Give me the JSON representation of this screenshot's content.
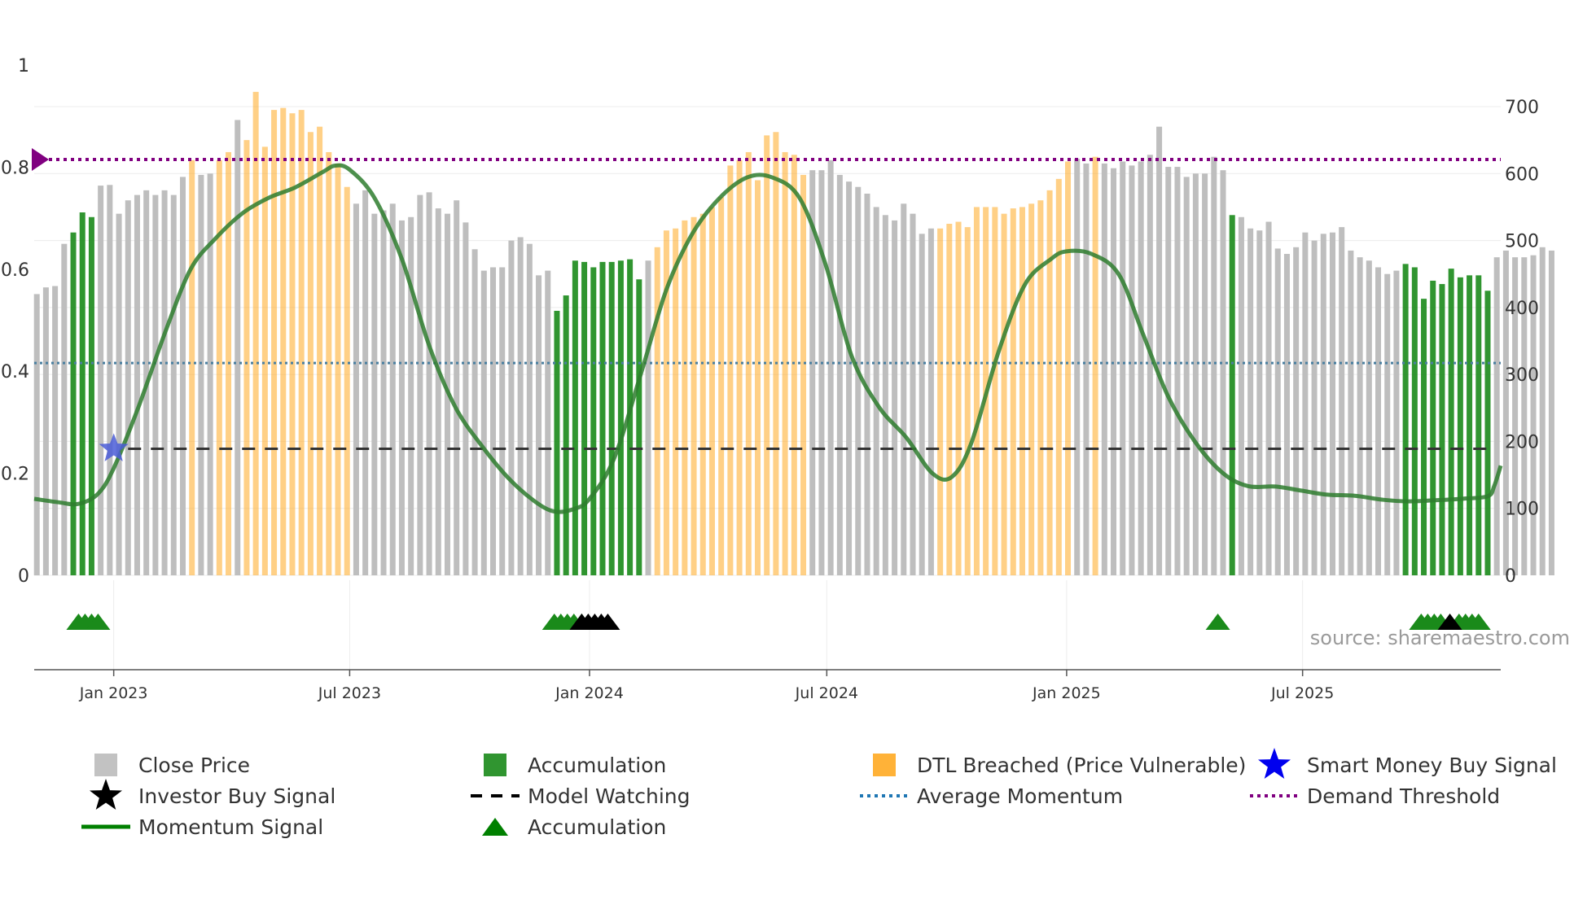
{
  "chart_data": {
    "type": "bar",
    "title": "",
    "source_text": "source: sharemaestro.com",
    "x_range": [
      "2022-11-01",
      "2025-11-30"
    ],
    "x_ticks": [
      {
        "date": "2023-01-01",
        "label": "Jan 2023"
      },
      {
        "date": "2023-07-01",
        "label": "Jul 2023"
      },
      {
        "date": "2024-01-01",
        "label": "Jan 2024"
      },
      {
        "date": "2024-07-01",
        "label": "Jul 2024"
      },
      {
        "date": "2025-01-01",
        "label": "Jan 2025"
      },
      {
        "date": "2025-07-01",
        "label": "Jul 2025"
      }
    ],
    "y_left": {
      "range": [
        0,
        1
      ],
      "ticks": [
        {
          "value": 0,
          "label": "0"
        },
        {
          "value": 0.2,
          "label": "0.2"
        },
        {
          "value": 0.4,
          "label": "0.4"
        },
        {
          "value": 0.6,
          "label": "0.6"
        },
        {
          "value": 0.8,
          "label": "0.8"
        },
        {
          "value": 1,
          "label": "1"
        }
      ]
    },
    "y_right": {
      "range": [
        0,
        760
      ],
      "ticks": [
        {
          "value": 0,
          "label": "0"
        },
        {
          "value": 100,
          "label": "100"
        },
        {
          "value": 200,
          "label": "200"
        },
        {
          "value": 300,
          "label": "300"
        },
        {
          "value": 400,
          "label": "400"
        },
        {
          "value": 500,
          "label": "500"
        },
        {
          "value": 600,
          "label": "600"
        },
        {
          "value": 700,
          "label": "700"
        }
      ]
    },
    "bar_start": "2022-11-03",
    "bar_interval_days": 7,
    "close_price": [
      420,
      430,
      432,
      495,
      512,
      542,
      535,
      582,
      583,
      540,
      560,
      568,
      575,
      568,
      575,
      568,
      595,
      620,
      598,
      600,
      620,
      632,
      680,
      650,
      722,
      640,
      695,
      698,
      690,
      695,
      662,
      670,
      632,
      615,
      580,
      555,
      575,
      540,
      545,
      555,
      530,
      535,
      568,
      572,
      548,
      540,
      560,
      527,
      487,
      455,
      460,
      460,
      500,
      505,
      495,
      448,
      455,
      395,
      418,
      470,
      468,
      460,
      468,
      468,
      470,
      472,
      442,
      470,
      490,
      515,
      518,
      530,
      535,
      540,
      550,
      565,
      612,
      620,
      632,
      590,
      657,
      662,
      632,
      628,
      598,
      605,
      605,
      620,
      598,
      588,
      580,
      570,
      550,
      538,
      530,
      555,
      540,
      510,
      518,
      518,
      525,
      528,
      520,
      550,
      550,
      550,
      540,
      548,
      550,
      555,
      560,
      575,
      592,
      618,
      622,
      615,
      625,
      615,
      608,
      618,
      612,
      618,
      628,
      670,
      610,
      610,
      595,
      600,
      600,
      625,
      605,
      538,
      535,
      518,
      515,
      528,
      488,
      480,
      490,
      512,
      500,
      510,
      512,
      520,
      485,
      475,
      470,
      460,
      450,
      455,
      465,
      460,
      413,
      440,
      435,
      458,
      445,
      448,
      448,
      425,
      475,
      485,
      475,
      475,
      478,
      490,
      485
    ],
    "accumulation_bar_indices": [
      4,
      5,
      6,
      57,
      58,
      59,
      60,
      61,
      62,
      63,
      64,
      65,
      66,
      131,
      150,
      151,
      152,
      153,
      154,
      155,
      156,
      157,
      158,
      159
    ],
    "dtl_breached_bar_indices": [
      17,
      20,
      21,
      23,
      24,
      25,
      26,
      27,
      28,
      29,
      30,
      31,
      32,
      33,
      34,
      68,
      69,
      70,
      71,
      72,
      73,
      74,
      75,
      76,
      77,
      78,
      79,
      80,
      81,
      82,
      83,
      84,
      99,
      100,
      101,
      102,
      103,
      104,
      105,
      106,
      107,
      108,
      109,
      110,
      111,
      112,
      113,
      116
    ],
    "momentum_signal": [
      [
        "2022-11-01",
        0.15
      ],
      [
        "2022-11-20",
        0.143
      ],
      [
        "2022-12-05",
        0.14
      ],
      [
        "2022-12-20",
        0.16
      ],
      [
        "2023-01-01",
        0.21
      ],
      [
        "2023-01-20",
        0.33
      ],
      [
        "2023-02-10",
        0.48
      ],
      [
        "2023-03-01",
        0.6
      ],
      [
        "2023-03-20",
        0.66
      ],
      [
        "2023-04-10",
        0.71
      ],
      [
        "2023-04-30",
        0.74
      ],
      [
        "2023-05-20",
        0.76
      ],
      [
        "2023-06-10",
        0.79
      ],
      [
        "2023-06-20",
        0.803
      ],
      [
        "2023-07-01",
        0.795
      ],
      [
        "2023-07-20",
        0.74
      ],
      [
        "2023-08-10",
        0.62
      ],
      [
        "2023-08-31",
        0.45
      ],
      [
        "2023-09-20",
        0.33
      ],
      [
        "2023-10-10",
        0.255
      ],
      [
        "2023-10-31",
        0.19
      ],
      [
        "2023-11-20",
        0.145
      ],
      [
        "2023-12-05",
        0.125
      ],
      [
        "2023-12-20",
        0.13
      ],
      [
        "2024-01-01",
        0.15
      ],
      [
        "2024-01-20",
        0.23
      ],
      [
        "2024-02-10",
        0.4
      ],
      [
        "2024-02-29",
        0.56
      ],
      [
        "2024-03-20",
        0.67
      ],
      [
        "2024-04-10",
        0.74
      ],
      [
        "2024-05-01",
        0.78
      ],
      [
        "2024-05-20",
        0.78
      ],
      [
        "2024-06-10",
        0.74
      ],
      [
        "2024-06-30",
        0.61
      ],
      [
        "2024-07-20",
        0.43
      ],
      [
        "2024-08-10",
        0.33
      ],
      [
        "2024-08-31",
        0.27
      ],
      [
        "2024-09-20",
        0.2
      ],
      [
        "2024-10-05",
        0.193
      ],
      [
        "2024-10-20",
        0.26
      ],
      [
        "2024-11-10",
        0.44
      ],
      [
        "2024-11-30",
        0.57
      ],
      [
        "2024-12-20",
        0.62
      ],
      [
        "2025-01-01",
        0.635
      ],
      [
        "2025-01-20",
        0.63
      ],
      [
        "2025-02-10",
        0.59
      ],
      [
        "2025-03-01",
        0.47
      ],
      [
        "2025-03-20",
        0.35
      ],
      [
        "2025-04-10",
        0.26
      ],
      [
        "2025-05-01",
        0.2
      ],
      [
        "2025-05-20",
        0.175
      ],
      [
        "2025-06-10",
        0.174
      ],
      [
        "2025-06-30",
        0.166
      ],
      [
        "2025-07-20",
        0.158
      ],
      [
        "2025-08-10",
        0.156
      ],
      [
        "2025-09-01",
        0.148
      ],
      [
        "2025-09-20",
        0.145
      ],
      [
        "2025-10-10",
        0.147
      ],
      [
        "2025-10-31",
        0.15
      ],
      [
        "2025-11-20",
        0.155
      ],
      [
        "2025-11-25",
        0.175
      ],
      [
        "2025-11-30",
        0.215
      ]
    ],
    "average_momentum": 0.416,
    "demand_threshold": 0.815,
    "model_watching": {
      "value": 0.248,
      "start": "2023-01-12",
      "end": "2025-11-26"
    },
    "smart_money_buy_signals": [
      {
        "date": "2023-01-01",
        "value": 0.248
      }
    ],
    "accumulation_markers": [
      "2022-12-05",
      "2022-12-10",
      "2022-12-15",
      "2022-12-20",
      "2023-12-05",
      "2023-12-10",
      "2023-12-15",
      "2023-12-20",
      "2023-12-26",
      "2025-04-27",
      "2025-09-30",
      "2025-10-05",
      "2025-10-10",
      "2025-10-15",
      "2025-10-29",
      "2025-11-03",
      "2025-11-08",
      "2025-11-13"
    ],
    "investor_buy_markers": [
      "2023-12-26",
      "2023-12-31",
      "2024-01-05",
      "2024-01-10",
      "2024-01-15",
      "2025-10-22"
    ],
    "legend": [
      {
        "label": "Close Price",
        "kind": "square",
        "color": "#bbbbbb"
      },
      {
        "label": "Accumulation",
        "kind": "square",
        "color": "#1a8a1a"
      },
      {
        "label": "DTL Breached (Price Vulnerable)",
        "kind": "square",
        "color": "#ffaa22"
      },
      {
        "label": "Smart Money Buy Signal",
        "kind": "star",
        "color": "#0000ee"
      },
      {
        "label": "Investor Buy Signal",
        "kind": "star",
        "color": "#000000"
      },
      {
        "label": "Model Watching",
        "kind": "dash",
        "color": "#000000"
      },
      {
        "label": "Average Momentum",
        "kind": "dot",
        "color": "#1f77b4"
      },
      {
        "label": "Demand Threshold",
        "kind": "dot",
        "color": "#800080"
      },
      {
        "label": "Momentum Signal",
        "kind": "line",
        "color": "#008000"
      },
      {
        "label": "Accumulation",
        "kind": "triangle",
        "color": "#008000"
      }
    ],
    "colors": {
      "close_price": "#bbbbbb",
      "accumulation": "#1a8a1a",
      "dtl_breached": "#ffaa22",
      "momentum": "#2e7d2e",
      "average_momentum": "#4a7fa0",
      "demand_threshold": "#800080",
      "model_watching": "#333333",
      "smart_money": "#4b5dd8",
      "investor": "#000000",
      "accumulation_marker": "#1a8a1a"
    }
  }
}
